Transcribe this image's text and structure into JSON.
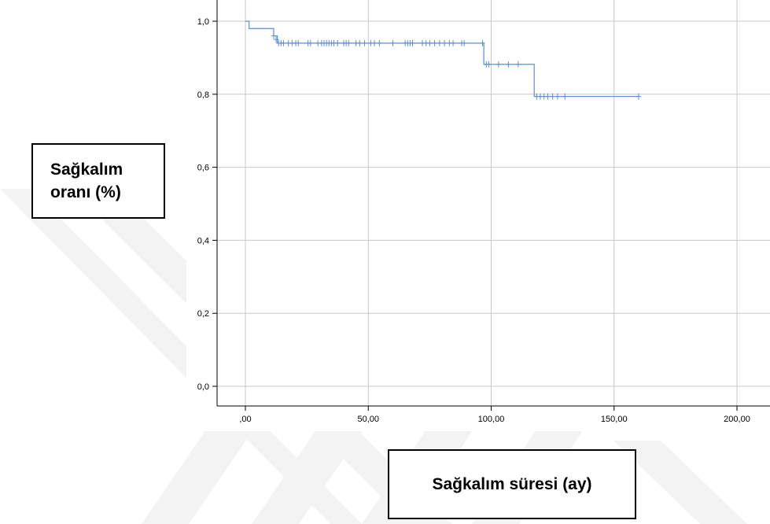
{
  "chart_data": {
    "type": "line",
    "title": "",
    "xlabel": "Sağkalım süresi (ay)",
    "ylabel_lines": [
      "Sağkalım",
      "oranı (%)"
    ],
    "xlim": [
      0,
      200
    ],
    "ylim": [
      0,
      1.0
    ],
    "x_ticks": [
      0,
      50,
      100,
      150,
      200
    ],
    "x_tick_labels": [
      ",00",
      "50,00",
      "100,00",
      "150,00",
      "200,00"
    ],
    "y_ticks": [
      0,
      0.2,
      0.4,
      0.6,
      0.8,
      1.0
    ],
    "y_tick_labels": [
      "0,0",
      "0,2",
      "0,4",
      "0,6",
      "0,8",
      "1,0"
    ],
    "grid": true,
    "series": [
      {
        "step_points": [
          [
            0,
            1.0
          ],
          [
            1.5,
            0.98
          ],
          [
            11.5,
            0.96
          ],
          [
            13,
            0.94
          ],
          [
            97,
            0.94
          ],
          [
            97,
            0.882
          ],
          [
            117.5,
            0.882
          ],
          [
            117.5,
            0.794
          ],
          [
            160,
            0.794
          ]
        ],
        "censored": [
          [
            11.5,
            0.96
          ],
          [
            12.5,
            0.95
          ],
          [
            13.5,
            0.94
          ],
          [
            14.5,
            0.94
          ],
          [
            15.5,
            0.94
          ],
          [
            17.5,
            0.94
          ],
          [
            19,
            0.94
          ],
          [
            20.5,
            0.94
          ],
          [
            21.5,
            0.94
          ],
          [
            25.5,
            0.94
          ],
          [
            26.5,
            0.94
          ],
          [
            29.5,
            0.94
          ],
          [
            31,
            0.94
          ],
          [
            32,
            0.94
          ],
          [
            33,
            0.94
          ],
          [
            34,
            0.94
          ],
          [
            35,
            0.94
          ],
          [
            36,
            0.94
          ],
          [
            37.5,
            0.94
          ],
          [
            40,
            0.94
          ],
          [
            41,
            0.94
          ],
          [
            42,
            0.94
          ],
          [
            45,
            0.94
          ],
          [
            46.5,
            0.94
          ],
          [
            48.5,
            0.94
          ],
          [
            51,
            0.94
          ],
          [
            52.5,
            0.94
          ],
          [
            54.5,
            0.94
          ],
          [
            60,
            0.94
          ],
          [
            65,
            0.94
          ],
          [
            66,
            0.94
          ],
          [
            67,
            0.94
          ],
          [
            68,
            0.94
          ],
          [
            72,
            0.94
          ],
          [
            73.5,
            0.94
          ],
          [
            75,
            0.94
          ],
          [
            77,
            0.94
          ],
          [
            79,
            0.94
          ],
          [
            81,
            0.94
          ],
          [
            83,
            0.94
          ],
          [
            84.5,
            0.94
          ],
          [
            88,
            0.94
          ],
          [
            89,
            0.94
          ],
          [
            96.5,
            0.94
          ],
          [
            98,
            0.882
          ],
          [
            99,
            0.882
          ],
          [
            103,
            0.882
          ],
          [
            107,
            0.882
          ],
          [
            111,
            0.882
          ],
          [
            118.5,
            0.794
          ],
          [
            120,
            0.794
          ],
          [
            121.5,
            0.794
          ],
          [
            123,
            0.794
          ],
          [
            125,
            0.794
          ],
          [
            127,
            0.794
          ],
          [
            130,
            0.794
          ],
          [
            160,
            0.794
          ]
        ]
      }
    ],
    "colors": {
      "line": "#5b8fd4",
      "grid": "#c8c8c8",
      "axis": "#000000",
      "watermark": "#f2f2f2"
    }
  }
}
